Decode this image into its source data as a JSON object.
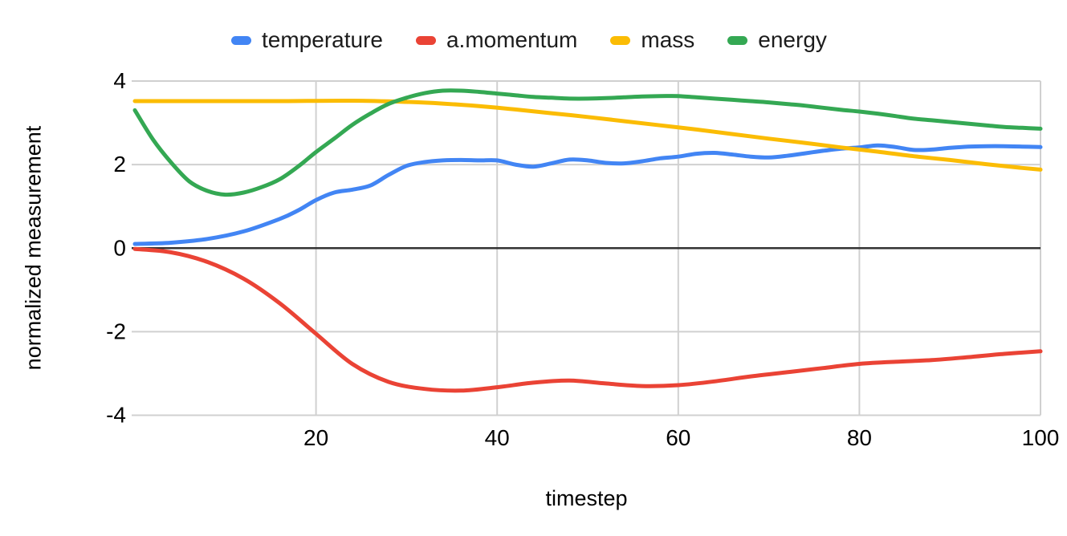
{
  "chart_data": {
    "type": "line",
    "xlabel": "timestep",
    "ylabel": "normalized measurement",
    "xlim": [
      0,
      100
    ],
    "ylim": [
      -4,
      4
    ],
    "x_ticks": [
      20,
      40,
      60,
      80,
      100
    ],
    "y_ticks": [
      4,
      2,
      0,
      -2,
      -4
    ],
    "grid": true,
    "legend_position": "top",
    "colors": {
      "background": "#ffffff",
      "gridline": "#d0d0d0",
      "zero_line": "#333333",
      "tick_text": "#000000"
    },
    "series": [
      {
        "name": "temperature",
        "color": "#4285F4",
        "points": [
          [
            0,
            0.1
          ],
          [
            4,
            0.13
          ],
          [
            8,
            0.22
          ],
          [
            12,
            0.4
          ],
          [
            16,
            0.7
          ],
          [
            18,
            0.9
          ],
          [
            20,
            1.15
          ],
          [
            22,
            1.33
          ],
          [
            24,
            1.4
          ],
          [
            26,
            1.5
          ],
          [
            28,
            1.75
          ],
          [
            30,
            1.97
          ],
          [
            32,
            2.06
          ],
          [
            34,
            2.1
          ],
          [
            36,
            2.11
          ],
          [
            38,
            2.1
          ],
          [
            40,
            2.1
          ],
          [
            42,
            2.0
          ],
          [
            44,
            1.95
          ],
          [
            46,
            2.03
          ],
          [
            48,
            2.12
          ],
          [
            50,
            2.1
          ],
          [
            52,
            2.04
          ],
          [
            54,
            2.03
          ],
          [
            56,
            2.08
          ],
          [
            58,
            2.15
          ],
          [
            60,
            2.19
          ],
          [
            62,
            2.26
          ],
          [
            64,
            2.28
          ],
          [
            66,
            2.24
          ],
          [
            68,
            2.19
          ],
          [
            70,
            2.17
          ],
          [
            72,
            2.21
          ],
          [
            74,
            2.27
          ],
          [
            76,
            2.33
          ],
          [
            78,
            2.38
          ],
          [
            80,
            2.41
          ],
          [
            82,
            2.46
          ],
          [
            84,
            2.42
          ],
          [
            86,
            2.35
          ],
          [
            88,
            2.36
          ],
          [
            90,
            2.4
          ],
          [
            92,
            2.43
          ],
          [
            94,
            2.44
          ],
          [
            96,
            2.44
          ],
          [
            98,
            2.43
          ],
          [
            100,
            2.42
          ]
        ]
      },
      {
        "name": "a.momentum",
        "color": "#EA4335",
        "points": [
          [
            0,
            -0.02
          ],
          [
            4,
            -0.1
          ],
          [
            8,
            -0.33
          ],
          [
            12,
            -0.73
          ],
          [
            16,
            -1.32
          ],
          [
            20,
            -2.05
          ],
          [
            24,
            -2.77
          ],
          [
            28,
            -3.2
          ],
          [
            32,
            -3.37
          ],
          [
            36,
            -3.41
          ],
          [
            40,
            -3.33
          ],
          [
            44,
            -3.22
          ],
          [
            48,
            -3.17
          ],
          [
            52,
            -3.24
          ],
          [
            56,
            -3.3
          ],
          [
            60,
            -3.28
          ],
          [
            64,
            -3.19
          ],
          [
            68,
            -3.07
          ],
          [
            72,
            -2.97
          ],
          [
            76,
            -2.87
          ],
          [
            80,
            -2.77
          ],
          [
            84,
            -2.72
          ],
          [
            88,
            -2.68
          ],
          [
            92,
            -2.61
          ],
          [
            96,
            -2.53
          ],
          [
            100,
            -2.47
          ]
        ]
      },
      {
        "name": "mass",
        "color": "#FBBC04",
        "points": [
          [
            0,
            3.52
          ],
          [
            8,
            3.52
          ],
          [
            16,
            3.52
          ],
          [
            24,
            3.53
          ],
          [
            30,
            3.5
          ],
          [
            34,
            3.46
          ],
          [
            38,
            3.4
          ],
          [
            42,
            3.32
          ],
          [
            46,
            3.23
          ],
          [
            50,
            3.14
          ],
          [
            54,
            3.04
          ],
          [
            58,
            2.94
          ],
          [
            62,
            2.84
          ],
          [
            66,
            2.73
          ],
          [
            70,
            2.62
          ],
          [
            74,
            2.52
          ],
          [
            78,
            2.41
          ],
          [
            82,
            2.31
          ],
          [
            86,
            2.2
          ],
          [
            90,
            2.11
          ],
          [
            94,
            2.01
          ],
          [
            98,
            1.92
          ],
          [
            100,
            1.88
          ]
        ]
      },
      {
        "name": "energy",
        "color": "#34A853",
        "points": [
          [
            0,
            3.3
          ],
          [
            2,
            2.6
          ],
          [
            4,
            2.05
          ],
          [
            6,
            1.6
          ],
          [
            8,
            1.37
          ],
          [
            10,
            1.28
          ],
          [
            12,
            1.33
          ],
          [
            14,
            1.46
          ],
          [
            16,
            1.65
          ],
          [
            18,
            1.95
          ],
          [
            20,
            2.3
          ],
          [
            22,
            2.62
          ],
          [
            24,
            2.95
          ],
          [
            26,
            3.22
          ],
          [
            28,
            3.45
          ],
          [
            30,
            3.6
          ],
          [
            32,
            3.71
          ],
          [
            34,
            3.77
          ],
          [
            36,
            3.77
          ],
          [
            38,
            3.74
          ],
          [
            40,
            3.7
          ],
          [
            42,
            3.66
          ],
          [
            44,
            3.62
          ],
          [
            46,
            3.6
          ],
          [
            48,
            3.58
          ],
          [
            50,
            3.58
          ],
          [
            52,
            3.59
          ],
          [
            54,
            3.61
          ],
          [
            56,
            3.63
          ],
          [
            58,
            3.64
          ],
          [
            60,
            3.64
          ],
          [
            62,
            3.61
          ],
          [
            64,
            3.58
          ],
          [
            66,
            3.55
          ],
          [
            68,
            3.52
          ],
          [
            70,
            3.49
          ],
          [
            72,
            3.45
          ],
          [
            74,
            3.41
          ],
          [
            76,
            3.36
          ],
          [
            78,
            3.31
          ],
          [
            80,
            3.27
          ],
          [
            82,
            3.22
          ],
          [
            84,
            3.16
          ],
          [
            86,
            3.1
          ],
          [
            88,
            3.06
          ],
          [
            90,
            3.02
          ],
          [
            92,
            2.98
          ],
          [
            94,
            2.94
          ],
          [
            96,
            2.9
          ],
          [
            98,
            2.88
          ],
          [
            100,
            2.86
          ]
        ]
      }
    ]
  }
}
